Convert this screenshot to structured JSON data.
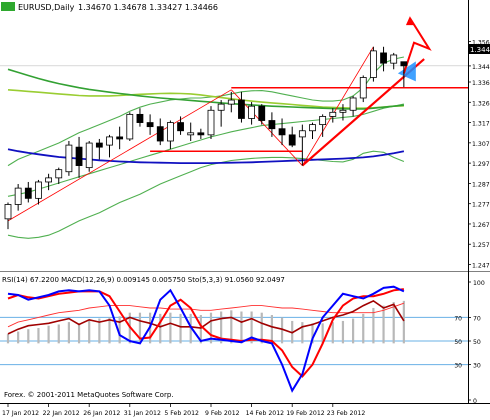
{
  "chart_data": [
    {
      "type": "candlestick",
      "header": {
        "symbol": "EURUSD,Daily",
        "values": "1.34670 1.34678 1.33427 1.34466"
      },
      "price_label": "1.34466",
      "ylim": [
        1.246,
        1.37
      ],
      "y_ticks": [
        "1.35660",
        "1.34466",
        "1.33680",
        "1.32690",
        "1.31700",
        "1.30710",
        "1.29720",
        "1.28730",
        "1.27740",
        "1.26750",
        "1.25760",
        "1.24770"
      ],
      "candles": [
        {
          "o": 1.27,
          "h": 1.278,
          "l": 1.265,
          "c": 1.277
        },
        {
          "o": 1.277,
          "h": 1.287,
          "l": 1.274,
          "c": 1.285
        },
        {
          "o": 1.285,
          "h": 1.288,
          "l": 1.278,
          "c": 1.28
        },
        {
          "o": 1.28,
          "h": 1.289,
          "l": 1.277,
          "c": 1.288
        },
        {
          "o": 1.288,
          "h": 1.292,
          "l": 1.284,
          "c": 1.29
        },
        {
          "o": 1.29,
          "h": 1.295,
          "l": 1.287,
          "c": 1.294
        },
        {
          "o": 1.293,
          "h": 1.308,
          "l": 1.291,
          "c": 1.306
        },
        {
          "o": 1.305,
          "h": 1.31,
          "l": 1.29,
          "c": 1.296
        },
        {
          "o": 1.295,
          "h": 1.308,
          "l": 1.293,
          "c": 1.307
        },
        {
          "o": 1.307,
          "h": 1.309,
          "l": 1.299,
          "c": 1.305
        },
        {
          "o": 1.306,
          "h": 1.311,
          "l": 1.3,
          "c": 1.31
        },
        {
          "o": 1.31,
          "h": 1.315,
          "l": 1.304,
          "c": 1.309
        },
        {
          "o": 1.309,
          "h": 1.322,
          "l": 1.308,
          "c": 1.321
        },
        {
          "o": 1.321,
          "h": 1.324,
          "l": 1.315,
          "c": 1.317
        },
        {
          "o": 1.317,
          "h": 1.321,
          "l": 1.311,
          "c": 1.315
        },
        {
          "o": 1.315,
          "h": 1.319,
          "l": 1.306,
          "c": 1.308
        },
        {
          "o": 1.308,
          "h": 1.318,
          "l": 1.304,
          "c": 1.317
        },
        {
          "o": 1.317,
          "h": 1.32,
          "l": 1.311,
          "c": 1.313
        },
        {
          "o": 1.311,
          "h": 1.317,
          "l": 1.308,
          "c": 1.312
        },
        {
          "o": 1.312,
          "h": 1.314,
          "l": 1.309,
          "c": 1.311
        },
        {
          "o": 1.311,
          "h": 1.325,
          "l": 1.309,
          "c": 1.323
        },
        {
          "o": 1.323,
          "h": 1.328,
          "l": 1.315,
          "c": 1.326
        },
        {
          "o": 1.326,
          "h": 1.332,
          "l": 1.322,
          "c": 1.328
        },
        {
          "o": 1.328,
          "h": 1.332,
          "l": 1.317,
          "c": 1.319
        },
        {
          "o": 1.319,
          "h": 1.327,
          "l": 1.316,
          "c": 1.325
        },
        {
          "o": 1.325,
          "h": 1.326,
          "l": 1.316,
          "c": 1.318
        },
        {
          "o": 1.318,
          "h": 1.322,
          "l": 1.31,
          "c": 1.314
        },
        {
          "o": 1.314,
          "h": 1.319,
          "l": 1.306,
          "c": 1.311
        },
        {
          "o": 1.311,
          "h": 1.315,
          "l": 1.305,
          "c": 1.306
        },
        {
          "o": 1.31,
          "h": 1.316,
          "l": 1.296,
          "c": 1.313
        },
        {
          "o": 1.313,
          "h": 1.317,
          "l": 1.309,
          "c": 1.316
        },
        {
          "o": 1.316,
          "h": 1.321,
          "l": 1.31,
          "c": 1.32
        },
        {
          "o": 1.32,
          "h": 1.324,
          "l": 1.317,
          "c": 1.322
        },
        {
          "o": 1.322,
          "h": 1.326,
          "l": 1.318,
          "c": 1.323
        },
        {
          "o": 1.323,
          "h": 1.33,
          "l": 1.32,
          "c": 1.329
        },
        {
          "o": 1.329,
          "h": 1.34,
          "l": 1.327,
          "c": 1.339
        },
        {
          "o": 1.339,
          "h": 1.354,
          "l": 1.337,
          "c": 1.352
        },
        {
          "o": 1.351,
          "h": 1.354,
          "l": 1.342,
          "c": 1.346
        },
        {
          "o": 1.346,
          "h": 1.351,
          "l": 1.343,
          "c": 1.35
        },
        {
          "o": 1.3467,
          "h": 1.3468,
          "l": 1.3343,
          "c": 1.3447
        }
      ],
      "indicators": {
        "ma_dark_green": [
          1.343,
          1.3415,
          1.34,
          1.3385,
          1.3372,
          1.336,
          1.335,
          1.334,
          1.3332,
          1.3325,
          1.3318,
          1.3312,
          1.3306,
          1.33,
          1.3295,
          1.329,
          1.3286,
          1.3282,
          1.3278,
          1.3274,
          1.327,
          1.3266,
          1.3262,
          1.3259,
          1.3256,
          1.3253,
          1.325,
          1.3248,
          1.3246,
          1.3244,
          1.3242,
          1.324,
          1.3238,
          1.3237,
          1.3236,
          1.3236,
          1.324,
          1.3245,
          1.325,
          1.3255
        ],
        "ma_olive": [
          1.333,
          1.3326,
          1.3322,
          1.3318,
          1.3314,
          1.331,
          1.3306,
          1.3302,
          1.33,
          1.33,
          1.33,
          1.3302,
          1.3305,
          1.3308,
          1.331,
          1.3312,
          1.3313,
          1.3312,
          1.331,
          1.3305,
          1.3298,
          1.3292,
          1.3286,
          1.328,
          1.3275,
          1.327,
          1.3266,
          1.3262,
          1.3258,
          1.3254,
          1.325,
          1.3246,
          1.3244,
          1.3242,
          1.324,
          1.324,
          1.3242,
          1.3246,
          1.325,
          1.3252
        ],
        "ma_blue": [
          1.304,
          1.303,
          1.3022,
          1.3015,
          1.3008,
          1.3002,
          1.2998,
          1.2994,
          1.299,
          1.2986,
          1.2983,
          1.298,
          1.2978,
          1.2976,
          1.2975,
          1.2974,
          1.2973,
          1.2972,
          1.2972,
          1.2972,
          1.2972,
          1.2973,
          1.2974,
          1.2975,
          1.2976,
          1.2978,
          1.298,
          1.2982,
          1.2984,
          1.2986,
          1.2988,
          1.299,
          1.2992,
          1.2994,
          1.2997,
          1.3,
          1.3005,
          1.3012,
          1.302,
          1.303
        ],
        "bb_upper": [
          1.296,
          1.299,
          1.301,
          1.303,
          1.305,
          1.307,
          1.3095,
          1.312,
          1.314,
          1.316,
          1.318,
          1.32,
          1.3225,
          1.3245,
          1.326,
          1.327,
          1.328,
          1.3285,
          1.329,
          1.329,
          1.3295,
          1.33,
          1.331,
          1.332,
          1.3325,
          1.3326,
          1.332,
          1.331,
          1.33,
          1.329,
          1.328,
          1.3275,
          1.3275,
          1.328,
          1.33,
          1.334,
          1.341,
          1.346,
          1.348,
          1.349
        ],
        "bb_middle": [
          1.281,
          1.282,
          1.283,
          1.2845,
          1.286,
          1.2875,
          1.289,
          1.2905,
          1.292,
          1.2935,
          1.295,
          1.2965,
          1.298,
          1.2995,
          1.301,
          1.3025,
          1.304,
          1.3055,
          1.307,
          1.3085,
          1.31,
          1.3112,
          1.3125,
          1.3135,
          1.3145,
          1.3155,
          1.316,
          1.3165,
          1.317,
          1.3175,
          1.318,
          1.3185,
          1.319,
          1.3195,
          1.32,
          1.321,
          1.3225,
          1.324,
          1.325,
          1.326
        ],
        "bb_lower": [
          1.262,
          1.261,
          1.2605,
          1.261,
          1.262,
          1.264,
          1.2665,
          1.269,
          1.271,
          1.273,
          1.2755,
          1.278,
          1.28,
          1.282,
          1.2845,
          1.287,
          1.289,
          1.291,
          1.293,
          1.295,
          1.2965,
          1.2975,
          1.2985,
          1.299,
          1.2995,
          1.2998,
          1.3,
          1.3,
          1.2998,
          1.2994,
          1.299,
          1.2985,
          1.298,
          1.2978,
          1.299,
          1.302,
          1.303,
          1.3025,
          1.3,
          1.298
        ]
      },
      "x_ticks": [
        "17 Jan 2012",
        "22 Jan 2012",
        "26 Jan 2012",
        "31 Jan 2012",
        "5 Feb 2012",
        "9 Feb 2012",
        "14 Feb 2012",
        "19 Feb 2012",
        "23 Feb 2012"
      ],
      "colors": {
        "bull": "#ffffff",
        "bear": "#000000",
        "wick": "#000000",
        "trend": "#ff0000",
        "ma_dark_green": "#33a133",
        "ma_olive": "#9acd32",
        "ma_blue": "#1010c0",
        "bb": "#50b050",
        "target": "#1e90ff"
      }
    },
    {
      "type": "oscillator",
      "header": "RSI(14) 67.2200  MACD(12,26,9) 0.009145 0.005750  Sto(5,3,3) 91.0560 92.0497",
      "ylim": [
        0,
        100
      ],
      "y_ticks": [
        "100",
        "70",
        "50",
        "30",
        "0"
      ],
      "levels": [
        70,
        50,
        30
      ],
      "series": {
        "stoch_main": [
          90,
          89,
          85,
          87,
          89,
          92,
          93,
          92,
          93,
          92,
          80,
          55,
          50,
          48,
          62,
          85,
          93,
          78,
          62,
          50,
          52,
          51,
          50,
          49,
          53,
          50,
          48,
          30,
          8,
          22,
          52,
          70,
          80,
          90,
          88,
          86,
          90,
          95,
          96,
          92
        ],
        "stoch_signal": [
          86,
          89,
          87,
          86,
          88,
          90,
          91,
          92,
          92,
          92,
          88,
          75,
          62,
          52,
          53,
          66,
          80,
          85,
          78,
          63,
          55,
          52,
          51,
          50,
          51,
          51,
          50,
          42,
          28,
          20,
          30,
          48,
          68,
          80,
          86,
          88,
          88,
          90,
          93,
          94
        ],
        "rsi": [
          56,
          60,
          63,
          64,
          65,
          67,
          69,
          64,
          68,
          66,
          68,
          66,
          70,
          67,
          65,
          62,
          65,
          62,
          62,
          61,
          67,
          69,
          70,
          66,
          69,
          65,
          62,
          60,
          57,
          62,
          64,
          67,
          70,
          72,
          75,
          80,
          84,
          78,
          81,
          67
        ],
        "macd_hist": [
          8,
          10,
          12,
          13,
          15,
          16,
          18,
          17,
          20,
          21,
          22,
          23,
          26,
          26,
          26,
          25,
          26,
          25,
          25,
          24,
          26,
          27,
          28,
          27,
          27,
          26,
          24,
          22,
          19,
          18,
          17,
          17,
          18,
          19,
          21,
          25,
          30,
          32,
          35,
          36
        ],
        "macd_signal": [
          62,
          66,
          68,
          70,
          72,
          74,
          75,
          76,
          78,
          79,
          80,
          80,
          80,
          79,
          78,
          78,
          77,
          77,
          77,
          76,
          76,
          77,
          78,
          79,
          80,
          80,
          79,
          78,
          78,
          77,
          76,
          75,
          74,
          74,
          74,
          74,
          74,
          76,
          79,
          82
        ]
      },
      "colors": {
        "stoch_main": "#0000ff",
        "stoch_signal": "#ff0000",
        "rsi": "#a00000",
        "macd_hist": "#b8b8b8",
        "macd_signal": "#ff3030",
        "levels": "#6ab0e6"
      }
    }
  ],
  "footer": {
    "copyright": "Forex. © 2001-2011 MetaQuotes Software Corp."
  }
}
